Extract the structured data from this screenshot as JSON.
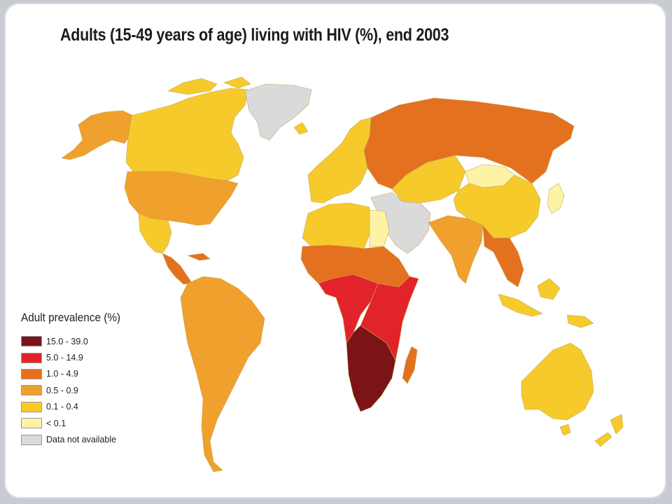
{
  "title": "Adults (15-49 years of age) living with HIV (%), end 2003",
  "legend": {
    "title": "Adult prevalence (%)",
    "items": [
      {
        "label": "15.0 - 39.0",
        "color": "#7b1317"
      },
      {
        "label": "5.0 - 14.9",
        "color": "#e3232a"
      },
      {
        "label": "1.0 - 4.9",
        "color": "#e4711f"
      },
      {
        "label": "0.5 - 0.9",
        "color": "#f0a02c"
      },
      {
        "label": "0.1 - 0.4",
        "color": "#f6ca2a"
      },
      {
        "label": "< 0.1",
        "color": "#fdf3a4"
      },
      {
        "label": "Data not available",
        "color": "#dadada"
      }
    ]
  },
  "regions": [
    {
      "name": "Alaska",
      "class": "0.5 - 0.9"
    },
    {
      "name": "Canada",
      "class": "0.1 - 0.4"
    },
    {
      "name": "Greenland",
      "class": "Data not available"
    },
    {
      "name": "United States",
      "class": "0.5 - 0.9"
    },
    {
      "name": "Mexico",
      "class": "0.1 - 0.4"
    },
    {
      "name": "Central America",
      "class": "1.0 - 4.9"
    },
    {
      "name": "South America",
      "class": "0.5 - 0.9"
    },
    {
      "name": "Western Europe",
      "class": "0.1 - 0.4"
    },
    {
      "name": "Russia",
      "class": "1.0 - 4.9"
    },
    {
      "name": "Central Asia",
      "class": "0.1 - 0.4"
    },
    {
      "name": "Mongolia",
      "class": "< 0.1"
    },
    {
      "name": "China",
      "class": "0.1 - 0.4"
    },
    {
      "name": "Middle East",
      "class": "Data not available"
    },
    {
      "name": "North Africa",
      "class": "0.1 - 0.4"
    },
    {
      "name": "Egypt",
      "class": "< 0.1"
    },
    {
      "name": "West Africa",
      "class": "1.0 - 4.9"
    },
    {
      "name": "Central Africa",
      "class": "5.0 - 14.9"
    },
    {
      "name": "East Africa",
      "class": "5.0 - 14.9"
    },
    {
      "name": "Southern Africa",
      "class": "15.0 - 39.0"
    },
    {
      "name": "Madagascar",
      "class": "1.0 - 4.9"
    },
    {
      "name": "India",
      "class": "0.5 - 0.9"
    },
    {
      "name": "Southeast Asia",
      "class": "1.0 - 4.9"
    },
    {
      "name": "Indonesia",
      "class": "0.1 - 0.4"
    },
    {
      "name": "Japan",
      "class": "< 0.1"
    },
    {
      "name": "Australia",
      "class": "0.1 - 0.4"
    },
    {
      "name": "New Zealand",
      "class": "0.1 - 0.4"
    }
  ]
}
